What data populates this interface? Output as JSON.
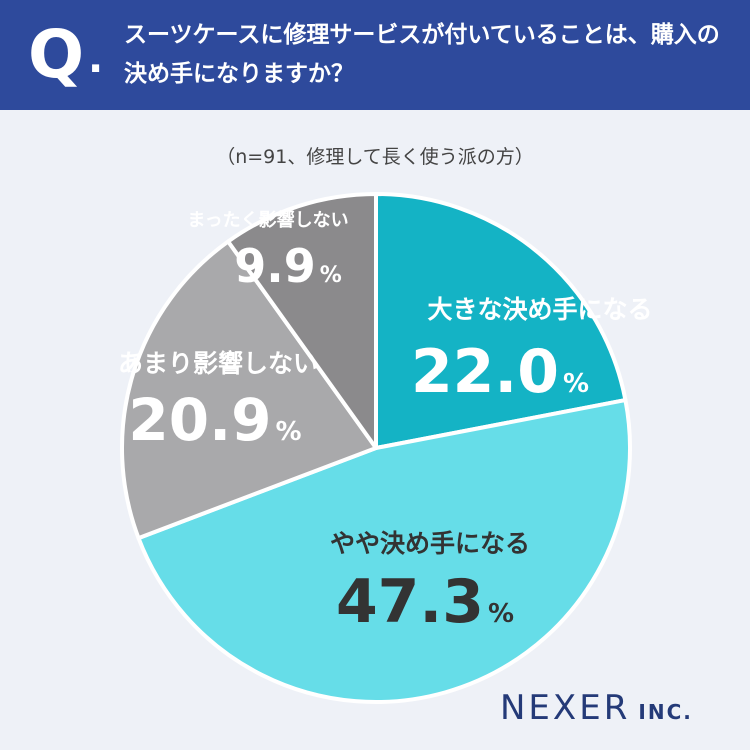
{
  "question": {
    "mark": "Q",
    "dot": ".",
    "text": "スーツケースに修理サービスが付いていることは、購入の決め手になりますか？"
  },
  "subtitle": "（n=91、修理して長く使う派の方）",
  "logo": {
    "main": "NEXER",
    "inc": "INC."
  },
  "chart_data": {
    "type": "pie",
    "title": "",
    "unit": "%",
    "start": "12 o'clock, clockwise",
    "slices": [
      {
        "label": "大きな決め手になる",
        "value": 22.0,
        "display": "22.0",
        "color": "#14b3c5",
        "label_color": "#ffffff"
      },
      {
        "label": "やや決め手になる",
        "value": 47.3,
        "display": "47.3",
        "color": "#66dde8",
        "label_color": "#333333"
      },
      {
        "label": "あまり影響しない",
        "value": 20.9,
        "display": "20.9",
        "color": "#a9a9ab",
        "label_color": "#ffffff"
      },
      {
        "label": "まったく影響しない",
        "value": 9.9,
        "display": "9.9",
        "color": "#8b8a8c",
        "label_color": "#ffffff"
      }
    ]
  }
}
